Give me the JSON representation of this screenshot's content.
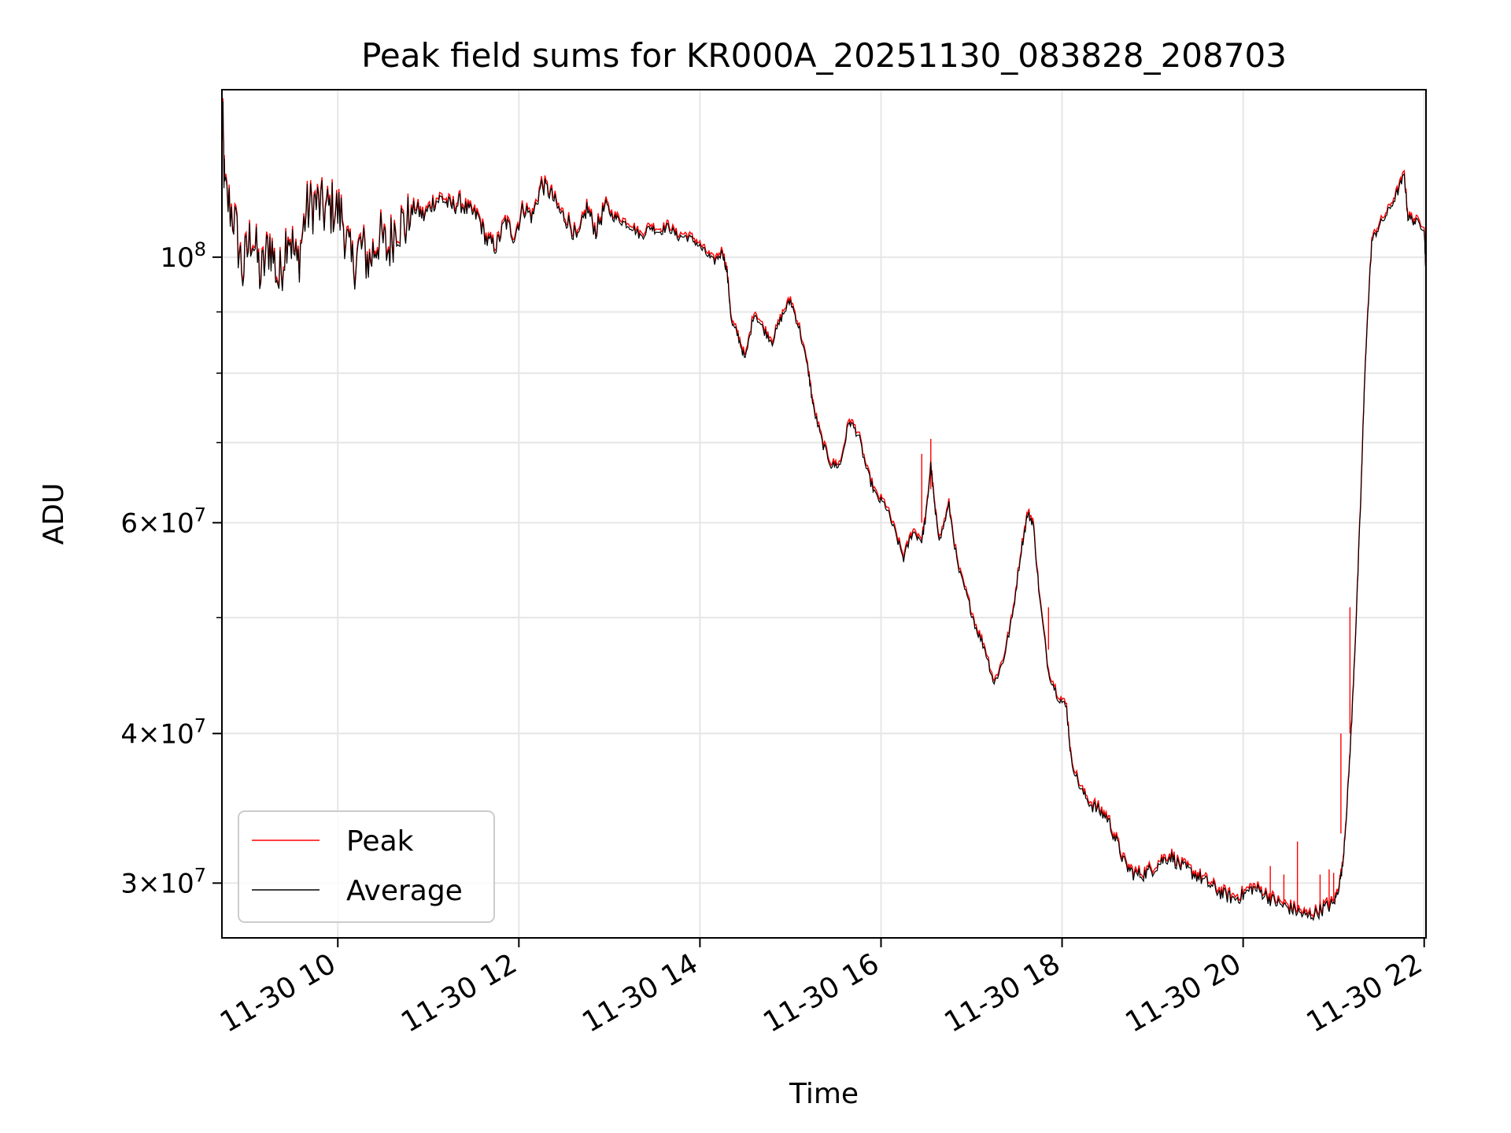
{
  "chart_data": {
    "type": "line",
    "title": "Peak field sums for KR000A_20251130_083828_208703",
    "xlabel": "Time",
    "ylabel": "ADU",
    "y_scale": "log",
    "ylim": [
      27000000,
      138000000
    ],
    "xlim_hours": [
      8.72,
      22.02
    ],
    "grid": true,
    "legend_position": "lower-left",
    "x_ticks": [
      {
        "value": 10,
        "label": "11-30 10"
      },
      {
        "value": 12,
        "label": "11-30 12"
      },
      {
        "value": 14,
        "label": "11-30 14"
      },
      {
        "value": 16,
        "label": "11-30 16"
      },
      {
        "value": 18,
        "label": "11-30 18"
      },
      {
        "value": 20,
        "label": "11-30 20"
      },
      {
        "value": 22,
        "label": "11-30 22"
      }
    ],
    "y_major_ticks": [
      {
        "value": 30000000,
        "mant": "3",
        "exp": "7"
      },
      {
        "value": 40000000,
        "mant": "4",
        "exp": "7"
      },
      {
        "value": 60000000,
        "mant": "6",
        "exp": "7"
      },
      {
        "value": 100000000,
        "mant": "",
        "exp": "8"
      }
    ],
    "y_minor_ticks": [
      50000000,
      70000000,
      80000000,
      90000000
    ],
    "series": [
      {
        "name": "Peak",
        "color": "#ff0000",
        "spikes": [
          [
            16.45,
            68500000,
            60000000
          ],
          [
            16.55,
            70500000,
            64000000
          ],
          [
            17.85,
            51000000,
            47000000
          ],
          [
            21.08,
            40000000,
            33000000
          ],
          [
            21.18,
            51000000,
            40000000
          ],
          [
            20.6,
            32500000,
            28500000
          ],
          [
            20.3,
            31000000,
            29000000
          ],
          [
            20.45,
            30500000,
            28800000
          ],
          [
            20.85,
            30500000,
            28600000
          ],
          [
            20.95,
            30800000,
            28700000
          ],
          [
            21.0,
            30600000,
            28900000
          ]
        ]
      },
      {
        "name": "Average",
        "color": "#000000",
        "points": [
          [
            8.72,
            137000000
          ],
          [
            8.75,
            113000000
          ],
          [
            8.85,
            108000000
          ],
          [
            8.95,
            97000000
          ],
          [
            9.05,
            105000000
          ],
          [
            9.15,
            96000000
          ],
          [
            9.25,
            103000000
          ],
          [
            9.35,
            95000000
          ],
          [
            9.45,
            106000000
          ],
          [
            9.55,
            98000000
          ],
          [
            9.65,
            109000000
          ],
          [
            9.75,
            111000000
          ],
          [
            9.85,
            109000000
          ],
          [
            9.95,
            110000000
          ],
          [
            10.05,
            108000000
          ],
          [
            10.15,
            98000000
          ],
          [
            10.25,
            102000000
          ],
          [
            10.35,
            99000000
          ],
          [
            10.45,
            104000000
          ],
          [
            10.55,
            101000000
          ],
          [
            10.65,
            107000000
          ],
          [
            10.75,
            106000000
          ],
          [
            10.85,
            110000000
          ],
          [
            10.95,
            108000000
          ],
          [
            11.05,
            111000000
          ],
          [
            11.15,
            112000000
          ],
          [
            11.25,
            110000000
          ],
          [
            11.35,
            111000000
          ],
          [
            11.45,
            109000000
          ],
          [
            11.55,
            108000000
          ],
          [
            11.65,
            103000000
          ],
          [
            11.75,
            102000000
          ],
          [
            11.85,
            107000000
          ],
          [
            11.95,
            104000000
          ],
          [
            12.05,
            110000000
          ],
          [
            12.15,
            108000000
          ],
          [
            12.25,
            115000000
          ],
          [
            12.35,
            113000000
          ],
          [
            12.45,
            109000000
          ],
          [
            12.55,
            107000000
          ],
          [
            12.65,
            103000000
          ],
          [
            12.75,
            110000000
          ],
          [
            12.85,
            105000000
          ],
          [
            12.95,
            110000000
          ],
          [
            13.05,
            108000000
          ],
          [
            13.15,
            107000000
          ],
          [
            13.25,
            106000000
          ],
          [
            13.35,
            104000000
          ],
          [
            13.45,
            106000000
          ],
          [
            13.55,
            105000000
          ],
          [
            13.65,
            106000000
          ],
          [
            13.75,
            104000000
          ],
          [
            13.85,
            104000000
          ],
          [
            13.95,
            103000000
          ],
          [
            14.05,
            101000000
          ],
          [
            14.15,
            99000000
          ],
          [
            14.25,
            101000000
          ],
          [
            14.3,
            97000000
          ],
          [
            14.35,
            88000000
          ],
          [
            14.42,
            86000000
          ],
          [
            14.5,
            82000000
          ],
          [
            14.6,
            90000000
          ],
          [
            14.7,
            87000000
          ],
          [
            14.8,
            85000000
          ],
          [
            14.9,
            89000000
          ],
          [
            15.0,
            92000000
          ],
          [
            15.1,
            87000000
          ],
          [
            15.2,
            80000000
          ],
          [
            15.25,
            75000000
          ],
          [
            15.35,
            70000000
          ],
          [
            15.45,
            67000000
          ],
          [
            15.55,
            67000000
          ],
          [
            15.65,
            73000000
          ],
          [
            15.75,
            71000000
          ],
          [
            15.85,
            66000000
          ],
          [
            15.95,
            63000000
          ],
          [
            16.05,
            62000000
          ],
          [
            16.15,
            59000000
          ],
          [
            16.25,
            56000000
          ],
          [
            16.35,
            59000000
          ],
          [
            16.45,
            58000000
          ],
          [
            16.5,
            61000000
          ],
          [
            16.55,
            67000000
          ],
          [
            16.6,
            61000000
          ],
          [
            16.65,
            58000000
          ],
          [
            16.75,
            62000000
          ],
          [
            16.85,
            55000000
          ],
          [
            16.95,
            52000000
          ],
          [
            17.05,
            49000000
          ],
          [
            17.15,
            47000000
          ],
          [
            17.25,
            44000000
          ],
          [
            17.35,
            46000000
          ],
          [
            17.45,
            50000000
          ],
          [
            17.55,
            57000000
          ],
          [
            17.62,
            61000000
          ],
          [
            17.68,
            60000000
          ],
          [
            17.75,
            52000000
          ],
          [
            17.85,
            45000000
          ],
          [
            17.95,
            43000000
          ],
          [
            18.05,
            42000000
          ],
          [
            18.1,
            38000000
          ],
          [
            18.2,
            36000000
          ],
          [
            18.3,
            35000000
          ],
          [
            18.4,
            34500000
          ],
          [
            18.5,
            34000000
          ],
          [
            18.6,
            32500000
          ],
          [
            18.7,
            31000000
          ],
          [
            18.8,
            30500000
          ],
          [
            18.9,
            30500000
          ],
          [
            19.0,
            30800000
          ],
          [
            19.1,
            31300000
          ],
          [
            19.2,
            31600000
          ],
          [
            19.3,
            31000000
          ],
          [
            19.4,
            30700000
          ],
          [
            19.5,
            30400000
          ],
          [
            19.6,
            30000000
          ],
          [
            19.7,
            29600000
          ],
          [
            19.8,
            29300000
          ],
          [
            19.9,
            29100000
          ],
          [
            20.0,
            29300000
          ],
          [
            20.1,
            29700000
          ],
          [
            20.2,
            29500000
          ],
          [
            20.3,
            29100000
          ],
          [
            20.4,
            28800000
          ],
          [
            20.5,
            28600000
          ],
          [
            20.6,
            28400000
          ],
          [
            20.7,
            28100000
          ],
          [
            20.8,
            28300000
          ],
          [
            20.9,
            28600000
          ],
          [
            21.0,
            28800000
          ],
          [
            21.05,
            29600000
          ],
          [
            21.1,
            31000000
          ],
          [
            21.15,
            35000000
          ],
          [
            21.2,
            41000000
          ],
          [
            21.25,
            50000000
          ],
          [
            21.3,
            63000000
          ],
          [
            21.35,
            82000000
          ],
          [
            21.42,
            103000000
          ],
          [
            21.5,
            106000000
          ],
          [
            21.6,
            109000000
          ],
          [
            21.7,
            113000000
          ],
          [
            21.78,
            117000000
          ],
          [
            21.82,
            108000000
          ],
          [
            21.9,
            107000000
          ],
          [
            22.0,
            106000000
          ],
          [
            22.02,
            97000000
          ]
        ]
      }
    ]
  }
}
